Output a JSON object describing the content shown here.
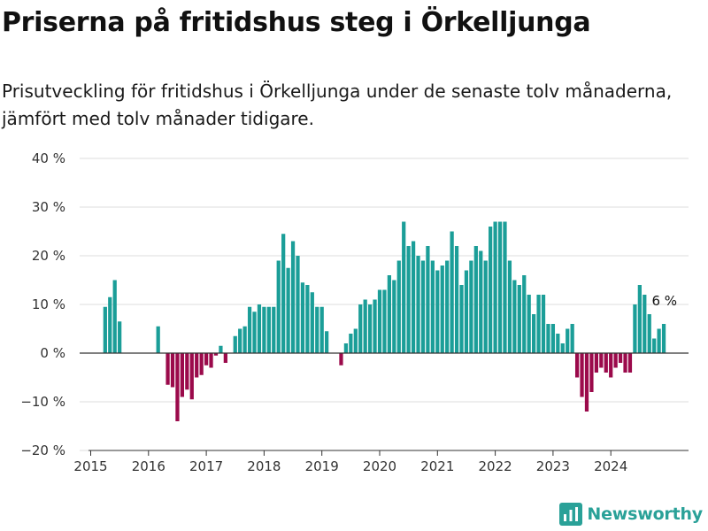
{
  "header": {
    "title": "Priserna på fritidshus steg i Örkelljunga",
    "subtitle": "Prisutveckling för fritidshus i Örkelljunga under de senaste tolv månaderna, jämfört med tolv månader tidigare."
  },
  "brand": {
    "name": "Newsworthy",
    "icon": "bar-chart-logo-icon"
  },
  "colors": {
    "positive": "#1b9e98",
    "negative": "#9b0a4b",
    "grid": "#dddddd",
    "axis": "#333333",
    "text": "#333333"
  },
  "chart_data": {
    "type": "bar",
    "title": "Priserna på fritidshus steg i Örkelljunga",
    "xlabel": "",
    "ylabel": "",
    "ylim": [
      -20,
      40
    ],
    "yticks": [
      -20,
      -10,
      0,
      10,
      20,
      30,
      40
    ],
    "ytick_labels": [
      "−20 %",
      "−10 %",
      "0 %",
      "10 %",
      "20 %",
      "30 %",
      "40 %"
    ],
    "xticks": [
      2015,
      2016,
      2017,
      2018,
      2019,
      2020,
      2021,
      2022,
      2023,
      2024
    ],
    "xtick_labels": [
      "2015",
      "2016",
      "2017",
      "2018",
      "2019",
      "2020",
      "2021",
      "2022",
      "2023",
      "2024"
    ],
    "grid": true,
    "frequency": "monthly",
    "annotation": {
      "text": "6 %",
      "x": "2024-12"
    },
    "series": [
      {
        "values": [
          [
            "2015-04",
            9.5
          ],
          [
            "2015-05",
            11.5
          ],
          [
            "2015-06",
            15
          ],
          [
            "2015-07",
            6.5
          ],
          [
            "2016-03",
            5.5
          ],
          [
            "2016-05",
            -6.5
          ],
          [
            "2016-06",
            -7
          ],
          [
            "2016-07",
            -14
          ],
          [
            "2016-08",
            -9
          ],
          [
            "2016-09",
            -7.5
          ],
          [
            "2016-10",
            -9.5
          ],
          [
            "2016-11",
            -5
          ],
          [
            "2016-12",
            -4.5
          ],
          [
            "2017-01",
            -2.5
          ],
          [
            "2017-02",
            -3
          ],
          [
            "2017-03",
            -0.5
          ],
          [
            "2017-04",
            1.5
          ],
          [
            "2017-05",
            -2
          ],
          [
            "2017-07",
            3.5
          ],
          [
            "2017-08",
            5
          ],
          [
            "2017-09",
            5.5
          ],
          [
            "2017-10",
            9.5
          ],
          [
            "2017-11",
            8.5
          ],
          [
            "2017-12",
            10
          ],
          [
            "2018-01",
            9.5
          ],
          [
            "2018-02",
            9.5
          ],
          [
            "2018-03",
            9.5
          ],
          [
            "2018-04",
            19
          ],
          [
            "2018-05",
            24.5
          ],
          [
            "2018-06",
            17.5
          ],
          [
            "2018-07",
            23
          ],
          [
            "2018-08",
            20
          ],
          [
            "2018-09",
            14.5
          ],
          [
            "2018-10",
            14
          ],
          [
            "2018-11",
            12.5
          ],
          [
            "2018-12",
            9.5
          ],
          [
            "2019-01",
            9.5
          ],
          [
            "2019-02",
            4.5
          ],
          [
            "2019-05",
            -2.5
          ],
          [
            "2019-06",
            2
          ],
          [
            "2019-07",
            4
          ],
          [
            "2019-08",
            5
          ],
          [
            "2019-09",
            10
          ],
          [
            "2019-10",
            11
          ],
          [
            "2019-11",
            10
          ],
          [
            "2019-12",
            11
          ],
          [
            "2020-01",
            13
          ],
          [
            "2020-02",
            13
          ],
          [
            "2020-03",
            16
          ],
          [
            "2020-04",
            15
          ],
          [
            "2020-05",
            19
          ],
          [
            "2020-06",
            27
          ],
          [
            "2020-07",
            22
          ],
          [
            "2020-08",
            23
          ],
          [
            "2020-09",
            20
          ],
          [
            "2020-10",
            19
          ],
          [
            "2020-11",
            22
          ],
          [
            "2020-12",
            19
          ],
          [
            "2021-01",
            17
          ],
          [
            "2021-02",
            18
          ],
          [
            "2021-03",
            19
          ],
          [
            "2021-04",
            25
          ],
          [
            "2021-05",
            22
          ],
          [
            "2021-06",
            14
          ],
          [
            "2021-07",
            17
          ],
          [
            "2021-08",
            19
          ],
          [
            "2021-09",
            22
          ],
          [
            "2021-10",
            21
          ],
          [
            "2021-11",
            19
          ],
          [
            "2021-12",
            26
          ],
          [
            "2022-01",
            27
          ],
          [
            "2022-02",
            27
          ],
          [
            "2022-03",
            27
          ],
          [
            "2022-04",
            19
          ],
          [
            "2022-05",
            15
          ],
          [
            "2022-06",
            14
          ],
          [
            "2022-07",
            16
          ],
          [
            "2022-08",
            12
          ],
          [
            "2022-09",
            8
          ],
          [
            "2022-10",
            12
          ],
          [
            "2022-11",
            12
          ],
          [
            "2022-12",
            6
          ],
          [
            "2023-01",
            6
          ],
          [
            "2023-02",
            4
          ],
          [
            "2023-03",
            2
          ],
          [
            "2023-04",
            5
          ],
          [
            "2023-05",
            6
          ],
          [
            "2023-06",
            -5
          ],
          [
            "2023-07",
            -9
          ],
          [
            "2023-08",
            -12
          ],
          [
            "2023-09",
            -8
          ],
          [
            "2023-10",
            -4
          ],
          [
            "2023-11",
            -3
          ],
          [
            "2023-12",
            -4
          ],
          [
            "2024-01",
            -5
          ],
          [
            "2024-02",
            -3
          ],
          [
            "2024-03",
            -2
          ],
          [
            "2024-04",
            -4
          ],
          [
            "2024-05",
            -4
          ],
          [
            "2024-06",
            10
          ],
          [
            "2024-07",
            14
          ],
          [
            "2024-08",
            12
          ],
          [
            "2024-09",
            8
          ],
          [
            "2024-10",
            3
          ],
          [
            "2024-11",
            5
          ],
          [
            "2024-12",
            6
          ]
        ]
      }
    ]
  }
}
